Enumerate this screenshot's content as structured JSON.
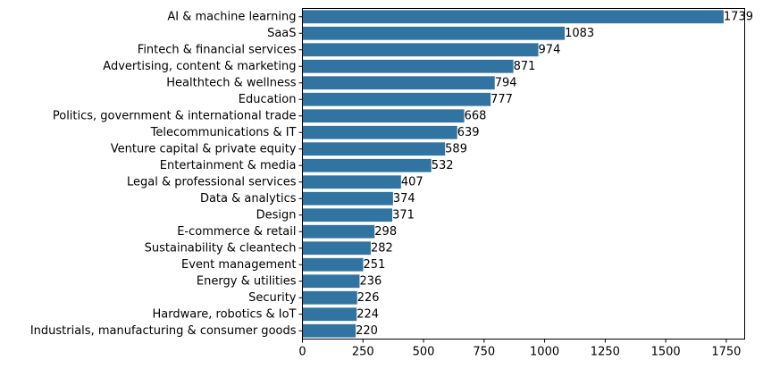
{
  "chart_data": {
    "type": "bar",
    "orientation": "horizontal",
    "bar_color": "#3274a1",
    "categories": [
      "AI & machine learning",
      "SaaS",
      "Fintech & financial services",
      "Advertising, content & marketing",
      "Healthtech & wellness",
      "Education",
      "Politics, government & international trade",
      "Telecommunications & IT",
      "Venture capital & private equity",
      "Entertainment & media",
      "Legal & professional services",
      "Data & analytics",
      "Design",
      "E-commerce & retail",
      "Sustainability & cleantech",
      "Event management",
      "Energy & utilities",
      "Security",
      "Hardware, robotics & IoT",
      "Industrials, manufacturing & consumer goods"
    ],
    "values": [
      1739,
      1083,
      974,
      871,
      794,
      777,
      668,
      639,
      589,
      532,
      407,
      374,
      371,
      298,
      282,
      251,
      236,
      226,
      224,
      220
    ],
    "title": "",
    "xlabel": "",
    "ylabel": "",
    "xlim": [
      0,
      1826
    ],
    "xticks": [
      0,
      250,
      500,
      750,
      1000,
      1250,
      1500,
      1750
    ],
    "grid": false,
    "legend": "none"
  }
}
